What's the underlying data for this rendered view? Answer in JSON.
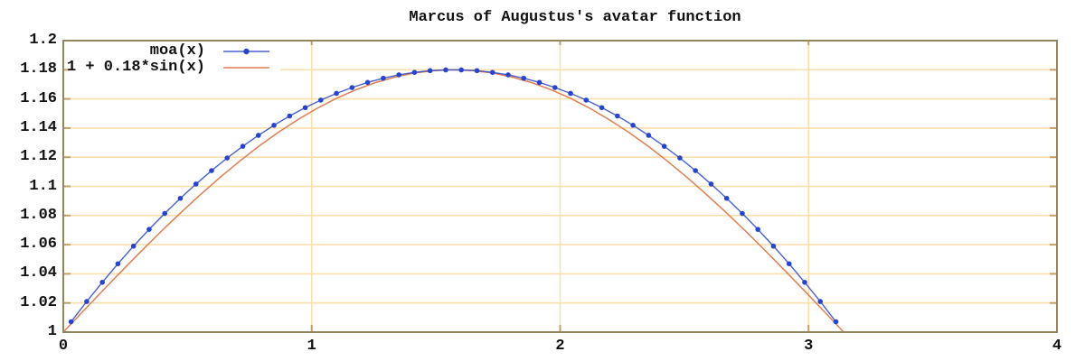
{
  "title": "Marcus of Augustus's avatar function",
  "colors": {
    "background": "#ffffff",
    "border": "#93865d",
    "grid": "#fbdfad",
    "tick": "#c89d62",
    "text": "#111111",
    "series_moa": "#2745cc",
    "series_sin": "#e07e52"
  },
  "chart_data": {
    "type": "line",
    "title": "Marcus of Augustus's avatar function",
    "xlabel": "",
    "ylabel": "",
    "xlim": [
      0,
      4
    ],
    "ylim": [
      1,
      1.2
    ],
    "grid": true,
    "legend_position": "top-left-inside",
    "x_ticks": [
      0,
      1,
      2,
      3,
      4
    ],
    "x_tick_labels": [
      "0",
      "1",
      "2",
      "3",
      "4"
    ],
    "y_ticks": [
      1,
      1.02,
      1.04,
      1.06,
      1.08,
      1.1,
      1.12,
      1.14,
      1.16,
      1.18,
      1.2
    ],
    "y_tick_labels": [
      "1",
      "1.02",
      "1.04",
      "1.06",
      "1.08",
      "1.1",
      "1.12",
      "1.14",
      "1.16",
      "1.18",
      "1.2"
    ],
    "series": [
      {
        "name": "moa(x)",
        "style": "linespoints",
        "marker": "filled-circle",
        "color": "#2745cc",
        "points": [
          [
            0.0314,
            1.0071
          ],
          [
            0.0942,
            1.021
          ],
          [
            0.1571,
            1.0342
          ],
          [
            0.2199,
            1.0469
          ],
          [
            0.2827,
            1.059
          ],
          [
            0.3456,
            1.0705
          ],
          [
            0.4084,
            1.0814
          ],
          [
            0.4712,
            1.0918
          ],
          [
            0.5341,
            1.1016
          ],
          [
            0.5969,
            1.1108
          ],
          [
            0.6597,
            1.1195
          ],
          [
            0.7226,
            1.1275
          ],
          [
            0.7854,
            1.135
          ],
          [
            0.8482,
            1.1419
          ],
          [
            0.9111,
            1.1483
          ],
          [
            0.9739,
            1.154
          ],
          [
            1.0367,
            1.1592
          ],
          [
            1.0996,
            1.1638
          ],
          [
            1.1624,
            1.1678
          ],
          [
            1.2252,
            1.1713
          ],
          [
            1.2881,
            1.1742
          ],
          [
            1.3509,
            1.1765
          ],
          [
            1.4137,
            1.1782
          ],
          [
            1.4765,
            1.1794
          ],
          [
            1.5394,
            1.1799
          ],
          [
            1.6022,
            1.1799
          ],
          [
            1.665,
            1.1794
          ],
          [
            1.7279,
            1.1782
          ],
          [
            1.7907,
            1.1765
          ],
          [
            1.8535,
            1.1742
          ],
          [
            1.9164,
            1.1713
          ],
          [
            1.9792,
            1.1678
          ],
          [
            2.042,
            1.1638
          ],
          [
            2.1049,
            1.1592
          ],
          [
            2.1677,
            1.154
          ],
          [
            2.2305,
            1.1483
          ],
          [
            2.2934,
            1.1419
          ],
          [
            2.3562,
            1.135
          ],
          [
            2.419,
            1.1275
          ],
          [
            2.4819,
            1.1195
          ],
          [
            2.5447,
            1.1108
          ],
          [
            2.6075,
            1.1016
          ],
          [
            2.6704,
            1.0918
          ],
          [
            2.7332,
            1.0814
          ],
          [
            2.796,
            1.0705
          ],
          [
            2.8588,
            1.059
          ],
          [
            2.9217,
            1.0469
          ],
          [
            2.9845,
            1.0342
          ],
          [
            3.0473,
            1.021
          ],
          [
            3.1102,
            1.0071
          ]
        ]
      },
      {
        "name": "1 + 0.18*sin(x)",
        "style": "line",
        "marker": "none",
        "color": "#e07e52",
        "formula": "1 + 0.18*sin(x)",
        "x_range": [
          0,
          3.1416
        ],
        "points": [
          [
            0.0,
            1.0
          ],
          [
            0.0785,
            1.0141
          ],
          [
            0.1571,
            1.0282
          ],
          [
            0.2356,
            1.042
          ],
          [
            0.3142,
            1.0556
          ],
          [
            0.3927,
            1.0689
          ],
          [
            0.4712,
            1.0817
          ],
          [
            0.5498,
            1.094
          ],
          [
            0.6283,
            1.1058
          ],
          [
            0.7069,
            1.1169
          ],
          [
            0.7854,
            1.1273
          ],
          [
            0.8639,
            1.1369
          ],
          [
            0.9425,
            1.1456
          ],
          [
            1.021,
            1.1535
          ],
          [
            1.0996,
            1.1604
          ],
          [
            1.1781,
            1.1663
          ],
          [
            1.2566,
            1.1712
          ],
          [
            1.3352,
            1.175
          ],
          [
            1.4137,
            1.1778
          ],
          [
            1.4923,
            1.1794
          ],
          [
            1.5708,
            1.18
          ],
          [
            1.6493,
            1.1794
          ],
          [
            1.7279,
            1.1778
          ],
          [
            1.8064,
            1.175
          ],
          [
            1.885,
            1.1712
          ],
          [
            1.9635,
            1.1663
          ],
          [
            2.042,
            1.1604
          ],
          [
            2.1206,
            1.1535
          ],
          [
            2.1991,
            1.1456
          ],
          [
            2.2777,
            1.1369
          ],
          [
            2.3562,
            1.1273
          ],
          [
            2.4347,
            1.1169
          ],
          [
            2.5133,
            1.1058
          ],
          [
            2.5918,
            1.094
          ],
          [
            2.6704,
            1.0817
          ],
          [
            2.7489,
            1.0689
          ],
          [
            2.8274,
            1.0556
          ],
          [
            2.906,
            1.042
          ],
          [
            2.9845,
            1.0282
          ],
          [
            3.0631,
            1.0141
          ],
          [
            3.1416,
            1.0
          ]
        ]
      }
    ]
  }
}
